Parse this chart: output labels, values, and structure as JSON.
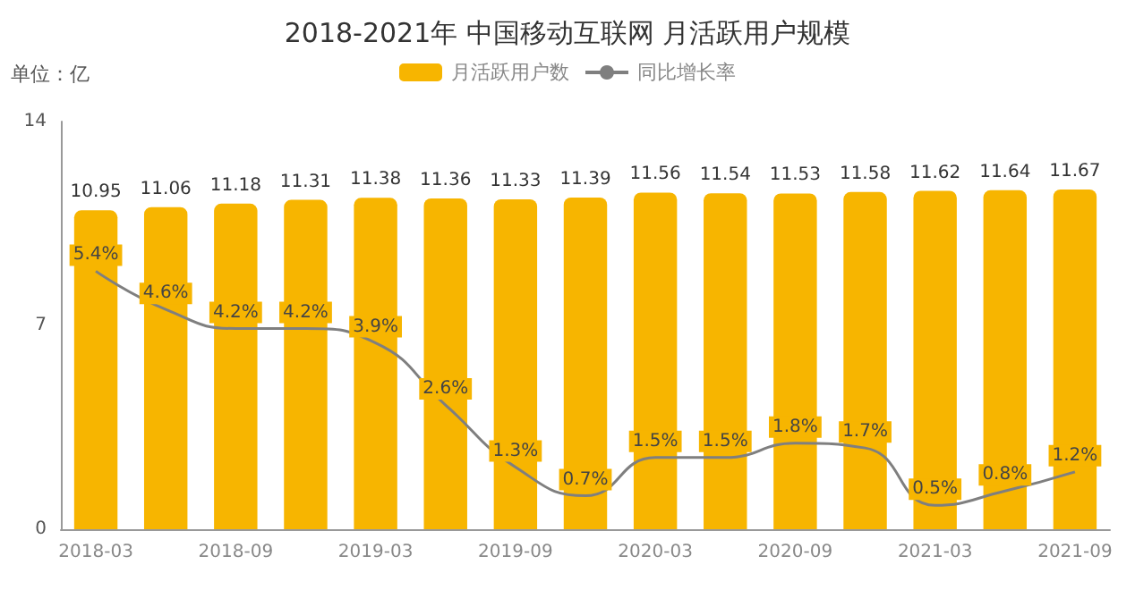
{
  "chart_data": {
    "type": "bar",
    "title": "2018-2021年 中国移动互联网 月活跃用户规模",
    "annotations": [
      "单位：亿"
    ],
    "categories": [
      "2018-03",
      null,
      "2018-09",
      null,
      "2019-03",
      null,
      "2019-09",
      null,
      "2020-03",
      null,
      "2020-09",
      null,
      "2021-03",
      null,
      "2021-09"
    ],
    "series": [
      {
        "name": "月活跃用户数",
        "color": "#f7b500",
        "data_labels": true,
        "values": [
          10.95,
          11.06,
          11.18,
          11.31,
          11.38,
          11.36,
          11.33,
          11.39,
          11.56,
          11.54,
          11.53,
          11.58,
          11.62,
          11.64,
          11.67
        ]
      },
      {
        "name": "同比增长率",
        "type": "line",
        "axis": "y2",
        "color": "#7f7f7f",
        "marker": "none",
        "values": [
          5.4,
          4.6,
          4.2,
          4.2,
          3.9,
          2.6,
          1.3,
          0.7,
          1.5,
          1.5,
          1.8,
          1.7,
          0.5,
          0.8,
          1.2
        ],
        "value_labels": [
          "5.4%",
          "4.6%",
          "4.2%",
          "4.2%",
          "3.9%",
          "2.6%",
          "1.3%",
          "0.7%",
          "1.5%",
          "1.5%",
          "1.8%",
          "1.7%",
          "0.5%",
          "0.8%",
          "1.2%"
        ]
      }
    ],
    "ylim": [
      0,
      14
    ],
    "yticks": [
      0,
      7,
      14
    ],
    "grid": false,
    "legend": "top"
  }
}
